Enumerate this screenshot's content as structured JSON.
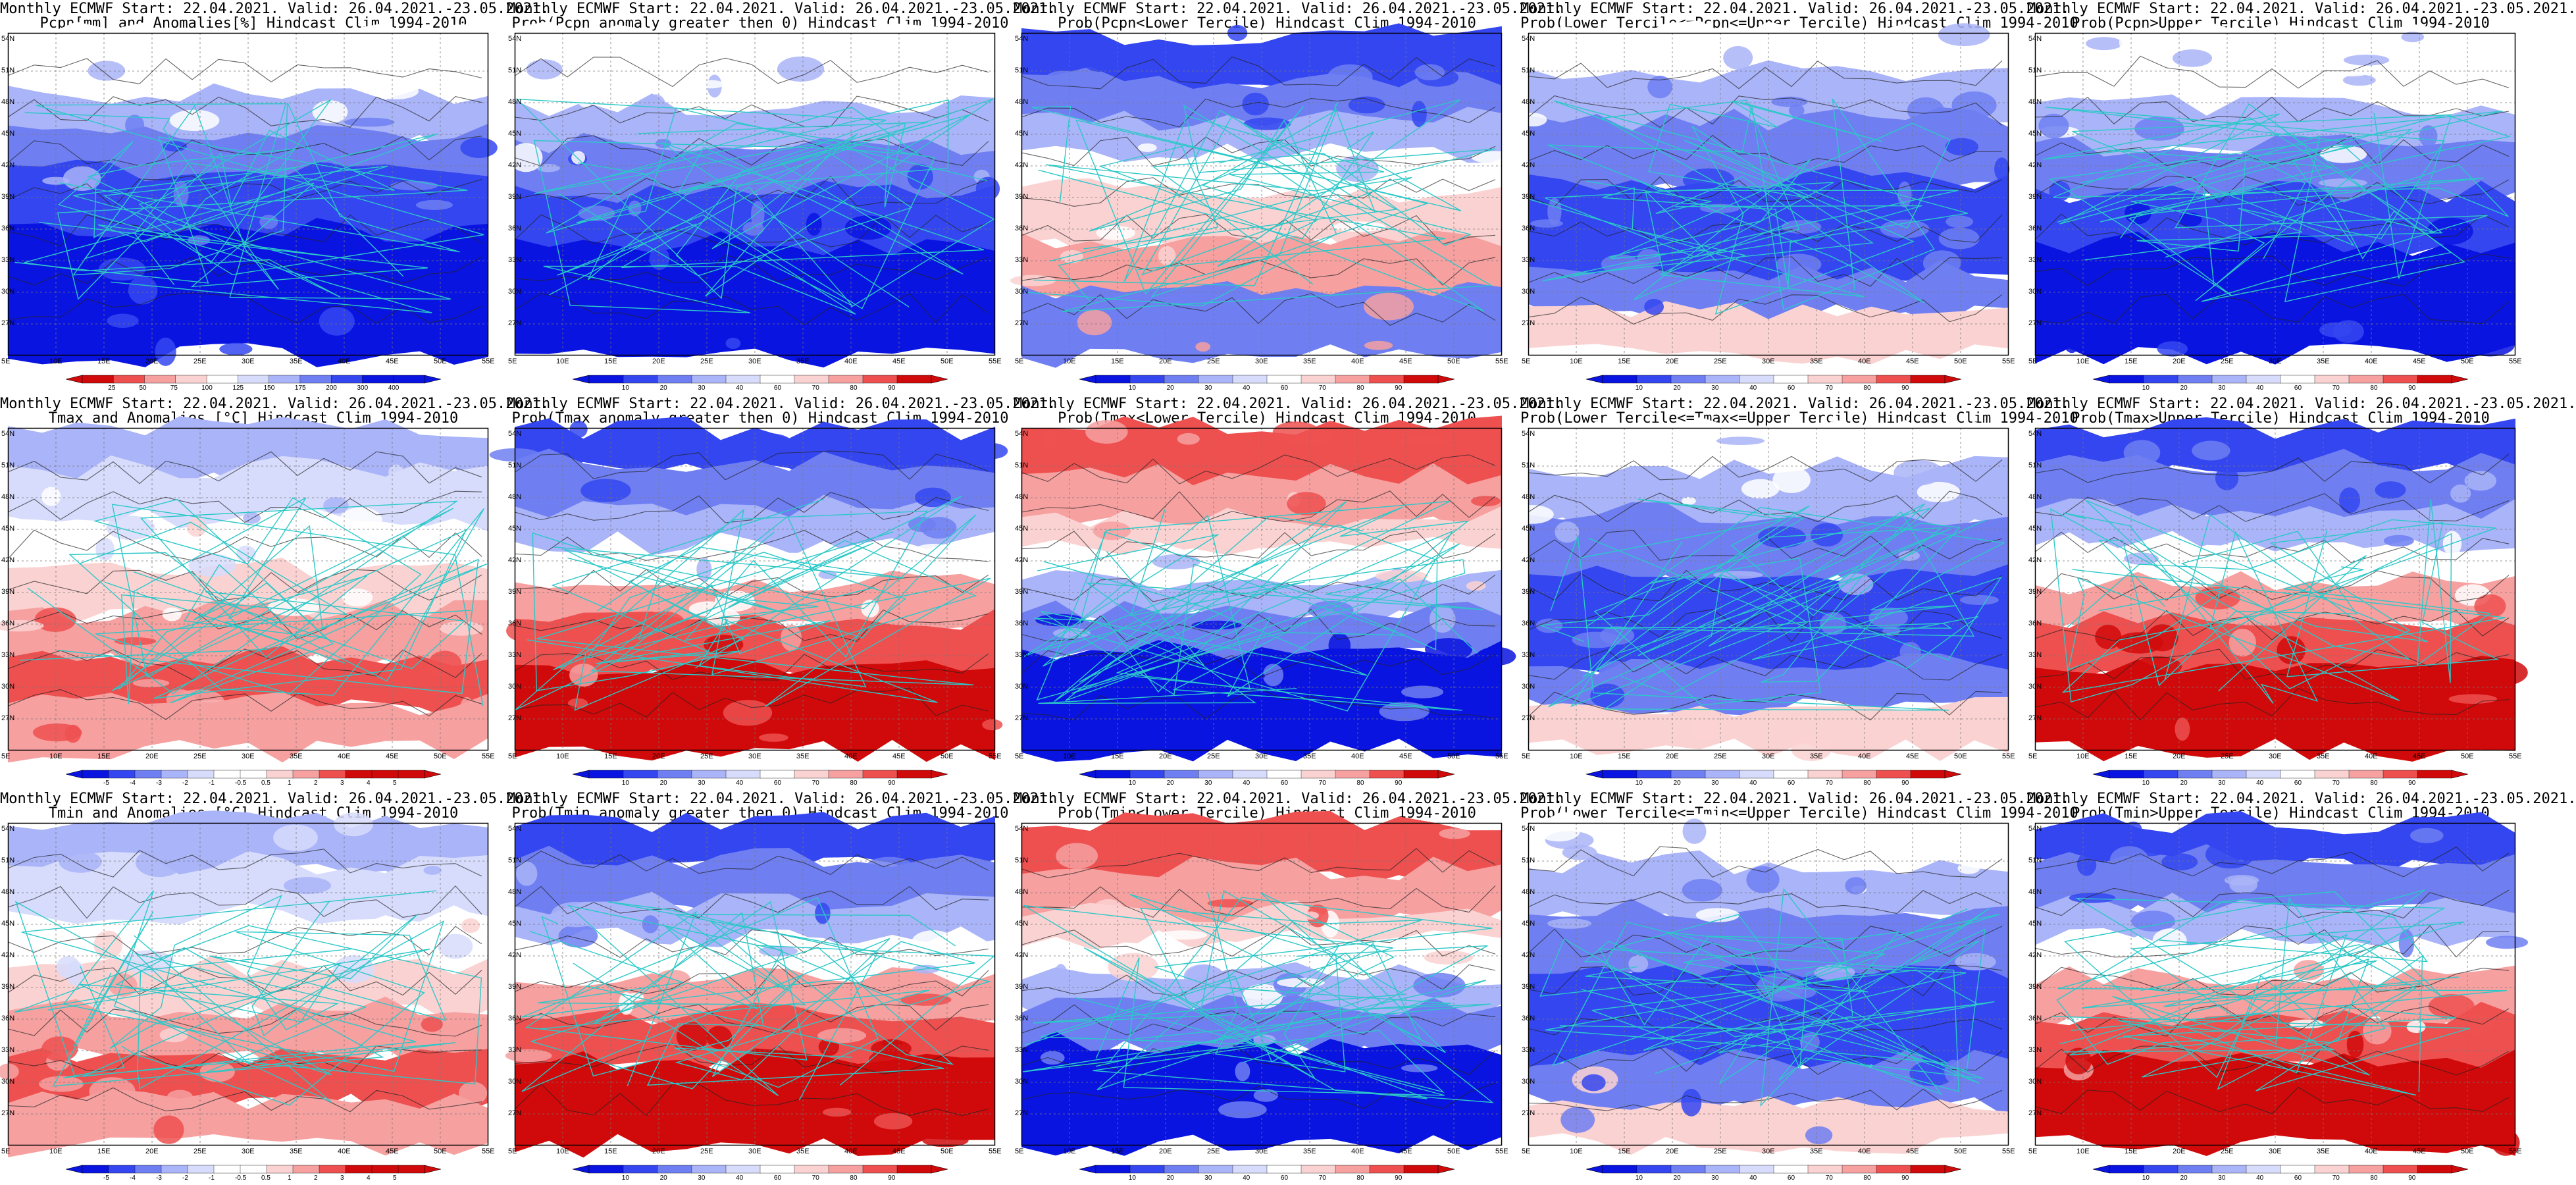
{
  "title_line1": "Monthly ECMWF Start: 22.04.2021. Valid: 26.04.2021.-23.05.2021.",
  "lat_labels": [
    "54N",
    "51N",
    "48N",
    "45N",
    "42N",
    "39N",
    "36N",
    "33N",
    "30N",
    "27N"
  ],
  "lon_labels": [
    "5E",
    "10E",
    "15E",
    "20E",
    "25E",
    "30E",
    "35E",
    "40E",
    "45E",
    "50E",
    "55E"
  ],
  "colorbars": {
    "prob": [
      "10",
      "20",
      "30",
      "40",
      "60",
      "70",
      "80",
      "90"
    ],
    "pcpn": [
      "25",
      "50",
      "75",
      "100",
      "125",
      "150",
      "175",
      "200",
      "300",
      "400"
    ],
    "temp": [
      "-5",
      "-4",
      "-3",
      "-2",
      "-1",
      "-0.5",
      "0.5",
      "1",
      "2",
      "3",
      "4",
      "5"
    ]
  },
  "panels": [
    {
      "id": "r0c0",
      "line2": "Pcpn[mm] and Anomalies[%] Hindcast Clim 1994-2010",
      "pattern": "pcpn-anom",
      "cbar": "pcpn"
    },
    {
      "id": "r0c1",
      "line2": "Prob(Pcpn anomaly greater then 0) Hindcast Clim 1994-2010",
      "pattern": "blue-south",
      "cbar": "prob"
    },
    {
      "id": "r0c2",
      "line2": "Prob(Pcpn<Lower Tercile) Hindcast Clim 1994-2010",
      "pattern": "red-south",
      "cbar": "prob"
    },
    {
      "id": "r0c3",
      "line2": "Prob(Lower Tercile<=Pcpn<=Upper Tercile) Hindcast Clim 1994-2010",
      "pattern": "blue-mixed",
      "cbar": "prob"
    },
    {
      "id": "r0c4",
      "line2": "Prob(Pcpn>Upper Tercile) Hindcast Clim 1994-2010",
      "pattern": "blue-south",
      "cbar": "prob"
    },
    {
      "id": "r1c0",
      "line2": "Tmax and Anomalies [°C] Hindcast Clim 1994-2010",
      "pattern": "temp-anom",
      "cbar": "temp"
    },
    {
      "id": "r1c1",
      "line2": "Prob(Tmax anomaly greater then 0) Hindcast Clim 1994-2010",
      "pattern": "blue-north-red-south",
      "cbar": "prob"
    },
    {
      "id": "r1c2",
      "line2": "Prob(Tmax<Lower Tercile) Hindcast Clim 1994-2010",
      "pattern": "red-north-blue-south",
      "cbar": "prob"
    },
    {
      "id": "r1c3",
      "line2": "Prob(Lower Tercile<=Tmax<=Upper Tercile) Hindcast Clim 1994-2010",
      "pattern": "blue-mixed",
      "cbar": "prob"
    },
    {
      "id": "r1c4",
      "line2": "Prob(Tmax>Upper Tercile) Hindcast Clim 1994-2010",
      "pattern": "blue-north-red-south",
      "cbar": "prob"
    },
    {
      "id": "r2c0",
      "line2": "Tmin and Anomalies [°C] Hindcast Clim 1994-2010",
      "pattern": "temp-anom",
      "cbar": "temp"
    },
    {
      "id": "r2c1",
      "line2": "Prob(Tmin anomaly greater then 0) Hindcast Clim 1994-2010",
      "pattern": "blue-north-red-south",
      "cbar": "prob"
    },
    {
      "id": "r2c2",
      "line2": "Prob(Tmin<Lower Tercile) Hindcast Clim 1994-2010",
      "pattern": "red-north-blue-south",
      "cbar": "prob"
    },
    {
      "id": "r2c3",
      "line2": "Prob(Lower Tercile<=Tmin<=Upper Tercile) Hindcast Clim 1994-2010",
      "pattern": "blue-mixed",
      "cbar": "prob"
    },
    {
      "id": "r2c4",
      "line2": "Prob(Tmin>Upper Tercile) Hindcast Clim 1994-2010",
      "pattern": "blue-north-red-south",
      "cbar": "prob"
    }
  ],
  "colors": {
    "deep_blue": "#0a14e0",
    "blue": "#3446f0",
    "mid_blue": "#6f7ff2",
    "light_blue": "#aab4f8",
    "pale_blue": "#d7dcfc",
    "white": "#ffffff",
    "pale_red": "#fbd2d2",
    "light_red": "#f6a0a0",
    "red": "#ee5050",
    "deep_red": "#d00a0a",
    "coast": "#2cc8c8",
    "contour": "#222222"
  }
}
